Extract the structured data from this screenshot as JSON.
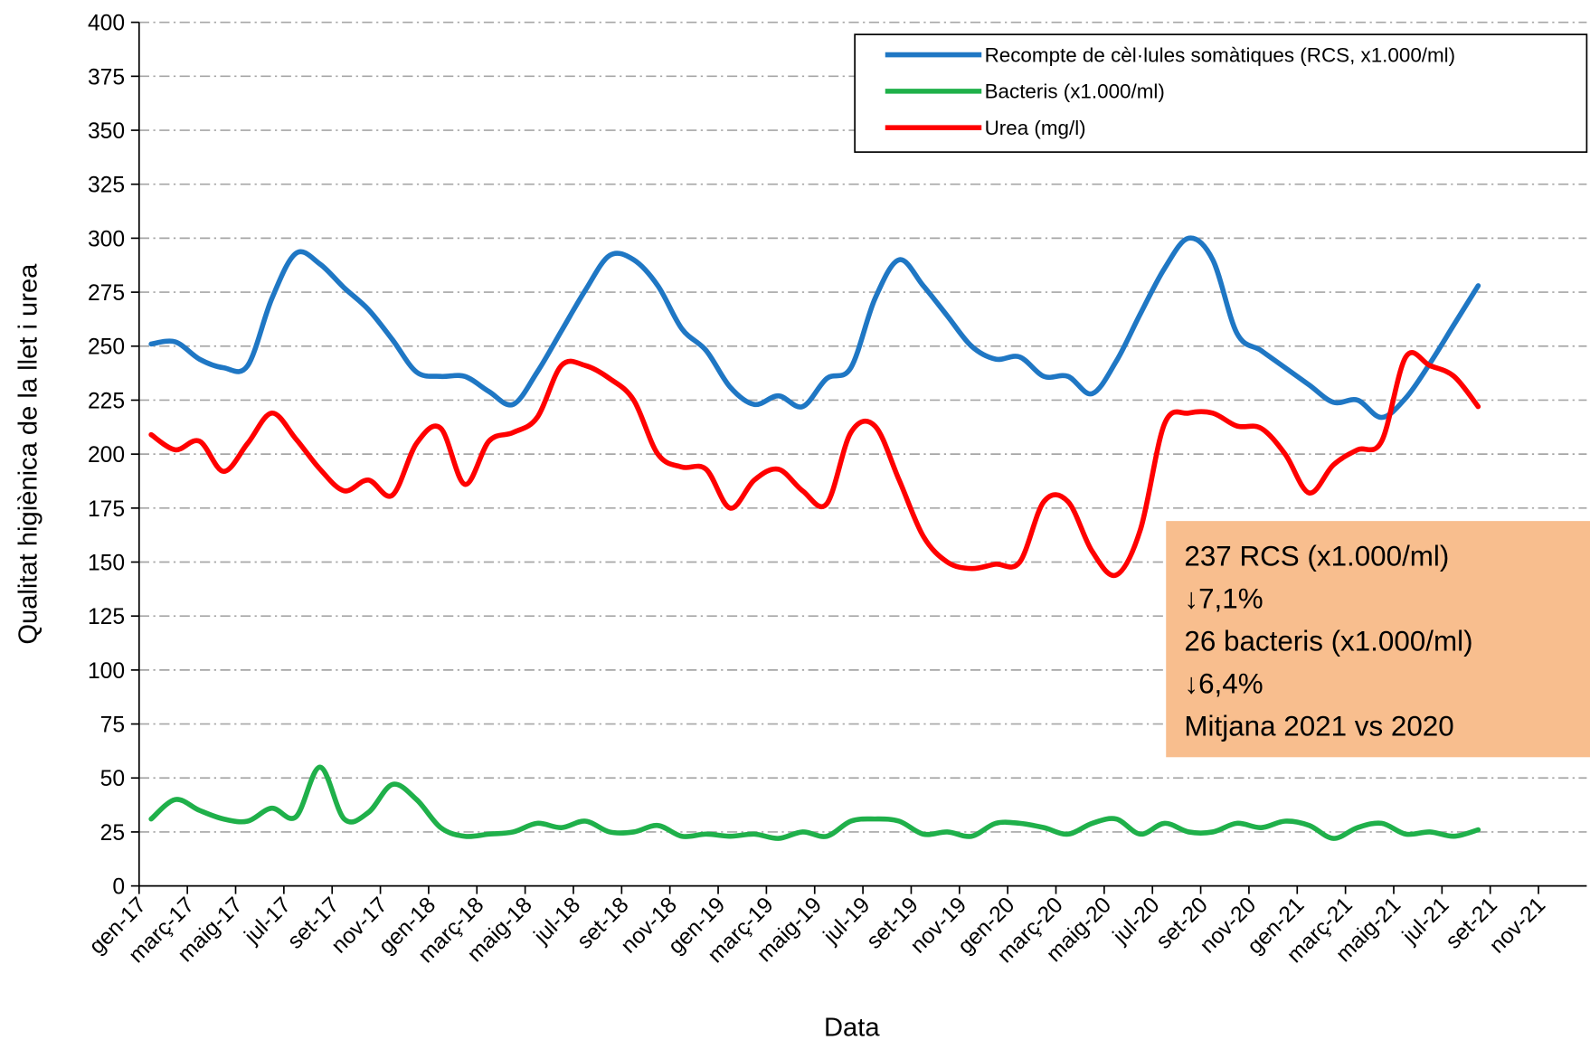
{
  "chart_data": {
    "type": "line",
    "xlabel": "Data",
    "ylabel": "Qualitat higiènica de la llet i urea",
    "categories": [
      "gen-17",
      null,
      "març-17",
      null,
      "maig-17",
      null,
      "jul-17",
      null,
      "set-17",
      null,
      "nov-17",
      null,
      "gen-18",
      null,
      "març-18",
      null,
      "maig-18",
      null,
      "jul-18",
      null,
      "set-18",
      null,
      "nov-18",
      null,
      "gen-19",
      null,
      "març-19",
      null,
      "maig-19",
      null,
      "jul-19",
      null,
      "set-19",
      null,
      "nov-19",
      null,
      "gen-20",
      null,
      "març-20",
      null,
      "maig-20",
      null,
      "jul-20",
      null,
      "set-20",
      null,
      "nov-20",
      null,
      "gen-21",
      null,
      "març-21",
      null,
      "maig-21",
      null,
      "jul-21",
      null,
      "set-21",
      null,
      "nov-21",
      null
    ],
    "series": [
      {
        "name": "Recompte de cèl·lules somàtiques (RCS, x1.000/ml)",
        "color": "#1f77c4",
        "values": [
          251,
          252,
          244,
          240,
          241,
          272,
          293,
          288,
          277,
          267,
          253,
          238,
          236,
          236,
          229,
          223,
          238,
          257,
          276,
          292,
          290,
          278,
          258,
          248,
          231,
          223,
          227,
          222,
          235,
          240,
          272,
          290,
          278,
          264,
          250,
          244,
          245,
          236,
          236,
          228,
          243,
          265,
          286,
          300,
          290,
          256,
          248,
          240,
          232,
          224,
          225,
          217,
          226,
          242,
          260,
          278,
          null,
          null,
          null,
          null
        ]
      },
      {
        "name": "Bacteris (x1.000/ml)",
        "color": "#1fb04a",
        "values": [
          31,
          40,
          35,
          31,
          30,
          36,
          32,
          55,
          31,
          34,
          47,
          40,
          27,
          23,
          24,
          25,
          29,
          27,
          30,
          25,
          25,
          28,
          23,
          24,
          23,
          24,
          22,
          25,
          23,
          30,
          31,
          30,
          24,
          25,
          23,
          29,
          29,
          27,
          24,
          29,
          31,
          24,
          29,
          25,
          25,
          29,
          27,
          30,
          28,
          22,
          27,
          29,
          24,
          25,
          23,
          26,
          null,
          null,
          null,
          null
        ]
      },
      {
        "name": "Urea (mg/l)",
        "color": "#ff0000",
        "values": [
          209,
          202,
          206,
          192,
          205,
          219,
          207,
          193,
          183,
          188,
          181,
          205,
          212,
          186,
          206,
          210,
          217,
          241,
          241,
          235,
          225,
          200,
          194,
          193,
          175,
          188,
          193,
          183,
          177,
          210,
          213,
          188,
          162,
          150,
          147,
          149,
          150,
          178,
          178,
          155,
          144,
          165,
          214,
          219,
          219,
          213,
          212,
          200,
          182,
          195,
          202,
          206,
          245,
          241,
          236,
          222,
          null,
          null,
          null,
          null
        ]
      }
    ],
    "ylim": [
      0,
      400
    ],
    "yticks": [
      0,
      25,
      50,
      75,
      100,
      125,
      150,
      175,
      200,
      225,
      250,
      275,
      300,
      325,
      350,
      375,
      400
    ],
    "grid": true,
    "legend": "upper right",
    "annotation": [
      "237 RCS (x1.000/ml)",
      "↓7,1%",
      "26 bacteris (x1.000/ml)",
      "↓6,4%",
      "Mitjana 2021 vs 2020"
    ],
    "annotation_color": "#f8be8e"
  }
}
